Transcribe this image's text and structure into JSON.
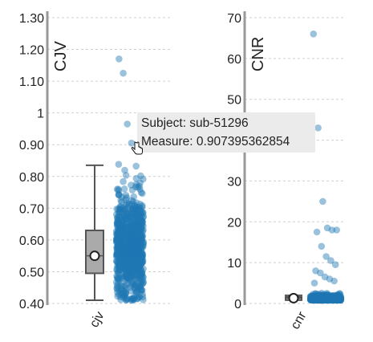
{
  "chart_data": [
    {
      "type": "scatter",
      "ylabel": "CJV",
      "category": "cjv",
      "yticks": [
        "0.40",
        "0.50",
        "0.60",
        "0.70",
        "0.80",
        "0.90",
        "1",
        "1.10",
        "1.20",
        "1.30"
      ],
      "ylim": [
        0.4,
        1.3
      ],
      "grid": true,
      "box": {
        "whisker_low": 0.41,
        "q1": 0.495,
        "median": 0.55,
        "mean": 0.55,
        "q3": 0.63,
        "whisker_high": 0.835
      },
      "outliers": [
        1.17,
        1.125,
        0.965,
        0.905
      ],
      "bulk_range": [
        0.41,
        0.84
      ],
      "point_color": "#1f77b4"
    },
    {
      "type": "scatter",
      "ylabel": "CNR",
      "category": "cnr",
      "yticks": [
        "0",
        "10",
        "20",
        "30",
        "40",
        "50",
        "60",
        "70"
      ],
      "ylim": [
        0,
        70
      ],
      "grid": true,
      "box": {
        "whisker_low": 1.0,
        "q1": 1.1,
        "median": 1.3,
        "mean": 1.3,
        "q3": 1.6,
        "whisker_high": 2.0
      },
      "outliers": [
        66,
        43,
        25,
        18.5,
        18,
        18,
        17.5,
        14,
        11.5,
        10.5,
        9.5,
        8,
        7.5,
        6.5,
        6,
        5.5,
        5
      ],
      "bulk_range": [
        0.8,
        4
      ],
      "point_color": "#1f77b4"
    }
  ],
  "tooltip": {
    "subject": "Subject: sub-51296",
    "measure": "Measure: 0.907395362854"
  }
}
